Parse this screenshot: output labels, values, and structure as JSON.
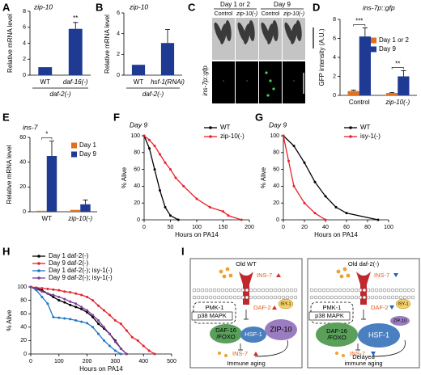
{
  "panel_labels": [
    "A",
    "B",
    "C",
    "D",
    "E",
    "F",
    "G",
    "H",
    "I"
  ],
  "chart_data": [
    {
      "type": "bar",
      "title": "zip-10",
      "ylabel": "Relative mRNA level",
      "categories": [
        "WT",
        "daf-16(-)"
      ],
      "group_label": "daf-2(-)",
      "values": [
        1,
        5.8
      ],
      "errors": [
        null,
        0.8
      ],
      "significance": [
        null,
        "**"
      ],
      "color": "#1f3a93",
      "ylim": [
        0,
        8
      ],
      "yticks": [
        0,
        2,
        4,
        6,
        8
      ]
    },
    {
      "type": "bar",
      "title": "zip-10",
      "ylabel": "Relative mRNA level",
      "categories": [
        "WT",
        "hsf-1(RNAi)"
      ],
      "group_label": "daf-2(-)",
      "values": [
        1,
        3.1
      ],
      "errors": [
        null,
        1.3
      ],
      "significance": [
        null,
        null
      ],
      "color": "#1f3a93",
      "ylim": [
        0,
        6
      ],
      "yticks": [
        0,
        2,
        4,
        6
      ]
    },
    {
      "type": "grouped_bar",
      "title": "ins-7p::gfp",
      "ylabel": "GFP intensity (A.U.)",
      "categories": [
        "Control",
        "zip-10(-)"
      ],
      "significance": [
        "***",
        "**"
      ],
      "ylim": [
        0,
        8
      ],
      "yticks": [
        0,
        2,
        4,
        6,
        8
      ],
      "series": [
        {
          "name": "Day 1 or 2",
          "color": "#e2711d",
          "values": [
            0.45,
            0.25
          ],
          "errors": [
            0.1,
            0.05
          ]
        },
        {
          "name": "Day 9",
          "color": "#1f3a93",
          "values": [
            6.2,
            2.0
          ],
          "errors": [
            0.9,
            0.6
          ]
        }
      ]
    },
    {
      "type": "grouped_bar",
      "title": "ins-7",
      "ylabel": "Relative mRNA level",
      "categories": [
        "WT",
        "zip-10(-)"
      ],
      "significance": [
        "*",
        null
      ],
      "ylim": [
        0,
        60
      ],
      "yticks": [
        0,
        20,
        40,
        60
      ],
      "series": [
        {
          "name": "Day 1",
          "color": "#e2711d",
          "values": [
            0.8,
            1.5
          ],
          "errors": [
            null,
            null
          ]
        },
        {
          "name": "Day 9",
          "color": "#1f3a93",
          "values": [
            45,
            6
          ],
          "errors": [
            12,
            3.5
          ]
        }
      ]
    },
    {
      "type": "line",
      "title": "Day 9",
      "ylabel": "% Alive",
      "xlabel": "Hours on PA14",
      "xlim": [
        0,
        200
      ],
      "xticks": [
        0,
        50,
        100,
        150,
        200
      ],
      "ylim": [
        0,
        100
      ],
      "yticks": [
        0,
        20,
        40,
        60,
        80,
        100
      ],
      "series": [
        {
          "name": "WT",
          "color": "#000000",
          "x": [
            0,
            10,
            20,
            30,
            40,
            50,
            65
          ],
          "values": [
            100,
            85,
            60,
            35,
            15,
            5,
            0
          ]
        },
        {
          "name": "zip-10(-)",
          "color": "#e8202a",
          "x": [
            0,
            10,
            20,
            30,
            40,
            50,
            60,
            75,
            100,
            125,
            150,
            160,
            185
          ],
          "values": [
            100,
            95,
            88,
            78,
            68,
            60,
            50,
            40,
            25,
            15,
            10,
            5,
            0
          ]
        }
      ]
    },
    {
      "type": "line",
      "title": "Day 9",
      "ylabel": "% Alive",
      "xlabel": "Hours on PA14",
      "xlim": [
        0,
        100
      ],
      "xticks": [
        0,
        20,
        40,
        60,
        80,
        100
      ],
      "ylim": [
        0,
        100
      ],
      "yticks": [
        0,
        20,
        40,
        60,
        80,
        100
      ],
      "series": [
        {
          "name": "WT",
          "color": "#000000",
          "x": [
            0,
            10,
            20,
            30,
            40,
            50,
            60,
            90
          ],
          "values": [
            100,
            88,
            68,
            45,
            28,
            15,
            8,
            0
          ]
        },
        {
          "name": "isy-1(-)",
          "color": "#e8202a",
          "x": [
            0,
            5,
            10,
            20,
            30,
            40
          ],
          "values": [
            100,
            70,
            40,
            20,
            8,
            0
          ]
        }
      ]
    },
    {
      "type": "line",
      "ylabel": "% Alive",
      "xlabel": "Hours on PA14",
      "xlim": [
        0,
        500
      ],
      "xticks": [
        0,
        100,
        200,
        300,
        400,
        500
      ],
      "ylim": [
        0,
        100
      ],
      "yticks": [
        0,
        20,
        40,
        60,
        80,
        100
      ],
      "series": [
        {
          "name": "Day 1 daf-2(-)",
          "color": "#000000",
          "x": [
            0,
            20,
            40,
            60,
            80,
            100,
            120,
            140,
            160,
            180,
            200,
            220,
            240,
            260,
            280,
            300,
            320,
            340
          ],
          "values": [
            100,
            98,
            95,
            90,
            85,
            80,
            77,
            73,
            70,
            67,
            62,
            55,
            45,
            38,
            30,
            20,
            8,
            0
          ]
        },
        {
          "name": "Day 9 daf-2(-)",
          "color": "#e8202a",
          "x": [
            0,
            20,
            40,
            60,
            80,
            100,
            120,
            140,
            160,
            180,
            200,
            220,
            240,
            260,
            280,
            300,
            320,
            340,
            360,
            380,
            400,
            420,
            440
          ],
          "values": [
            100,
            99,
            98,
            97,
            96,
            95,
            93,
            92,
            90,
            88,
            85,
            80,
            72,
            65,
            58,
            50,
            45,
            35,
            25,
            20,
            12,
            5,
            0
          ]
        },
        {
          "name": "Day 1 daf-2(-); isy-1(-)",
          "color": "#1f77c4",
          "x": [
            0,
            20,
            40,
            60,
            80,
            100,
            120,
            140,
            160,
            180,
            200,
            220,
            240,
            260,
            280,
            300,
            320
          ],
          "values": [
            100,
            95,
            85,
            75,
            55,
            54,
            53,
            52,
            50,
            48,
            46,
            40,
            30,
            20,
            12,
            5,
            0
          ]
        },
        {
          "name": "Day 9 daf-2(-); isy-1(-)",
          "color": "#7e3f98",
          "x": [
            0,
            20,
            40,
            60,
            80,
            100,
            120,
            140,
            160,
            180,
            200,
            220,
            240,
            260,
            280,
            300,
            320,
            340
          ],
          "values": [
            100,
            97,
            93,
            90,
            88,
            85,
            82,
            78,
            75,
            70,
            65,
            58,
            50,
            40,
            30,
            18,
            8,
            0
          ]
        }
      ]
    }
  ],
  "micrograph": {
    "day_labels": [
      "Day 1 or 2",
      "Day 9"
    ],
    "condition_labels": [
      "Control",
      "zip-10(-)",
      "Control",
      "zip-10(-)"
    ],
    "channel_label": "ins-7p::gfp"
  },
  "diagram": {
    "left": {
      "title": "Old WT",
      "ligand": "INS-7",
      "kinase": "PMK-1",
      "mapk": "p38 MAPK",
      "receptor": "DAF-2",
      "isy": "ISY-1",
      "foxo": [
        "DAF-16",
        "/FOXO"
      ],
      "hsf": "HSF-1",
      "zip": "ZIP-10",
      "output": "INS-7",
      "outcome": [
        "Immune aging"
      ]
    },
    "right": {
      "title": "Old daf-2(-)",
      "ligand": "INS-7",
      "kinase": "PMK-1",
      "mapk": "p38 MAPK",
      "receptor": "DAF-2",
      "isy": "ISY-1",
      "foxo": [
        "DAF-16",
        "/FOXO"
      ],
      "hsf": "HSF-1",
      "zip": "ZIP-10",
      "output": "INS-7",
      "outcome": [
        "Delayed",
        "immune aging"
      ]
    }
  }
}
